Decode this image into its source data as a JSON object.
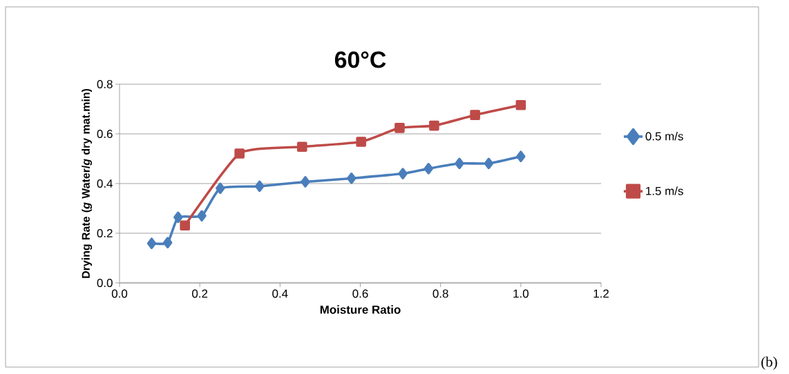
{
  "chart_data": {
    "type": "line",
    "title": "60°C",
    "xlabel": "Moisture Ratio",
    "ylabel": "Drying Rate  (*g* Water/*g* dry mat.min)",
    "series": [
      {
        "name": "0.5 m/s",
        "color": "#4a7ebb",
        "marker": "diamond",
        "x": [
          0.08,
          0.12,
          0.146,
          0.205,
          0.251,
          0.349,
          0.463,
          0.578,
          0.706,
          0.77,
          0.847,
          0.92,
          1.0
        ],
        "values": [
          0.159,
          0.162,
          0.264,
          0.27,
          0.381,
          0.389,
          0.407,
          0.421,
          0.44,
          0.46,
          0.481,
          0.481,
          0.509
        ]
      },
      {
        "name": "1.5 m/s",
        "color": "#be4b48",
        "marker": "square",
        "x": [
          0.163,
          0.299,
          0.455,
          0.602,
          0.698,
          0.784,
          0.886,
          1.0
        ],
        "values": [
          0.231,
          0.521,
          0.548,
          0.568,
          0.624,
          0.633,
          0.676,
          0.716
        ]
      }
    ],
    "xlim": [
      0,
      1.2
    ],
    "ylim": [
      0,
      0.8
    ],
    "xticks": [
      {
        "value": 0,
        "label": "0.0"
      },
      {
        "value": 0.2,
        "label": "0.2"
      },
      {
        "value": 0.4,
        "label": "0.4"
      },
      {
        "value": 0.6,
        "label": "0.6"
      },
      {
        "value": 0.8,
        "label": "0.8"
      },
      {
        "value": 1.0,
        "label": "1.0"
      },
      {
        "value": 1.2,
        "label": "1.2"
      }
    ],
    "yticks": [
      {
        "value": 0,
        "label": "0.0"
      },
      {
        "value": 0.2,
        "label": "0.2"
      },
      {
        "value": 0.4,
        "label": "0.4"
      },
      {
        "value": 0.6,
        "label": "0.6"
      },
      {
        "value": 0.8,
        "label": "0.8"
      }
    ],
    "grid": "y",
    "legend": "right",
    "line_style": "solid",
    "annotations": [
      "(b)"
    ]
  }
}
